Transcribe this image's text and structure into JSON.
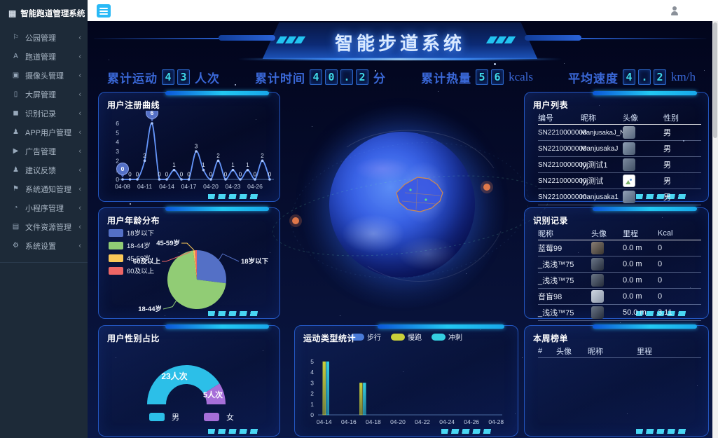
{
  "app": {
    "sidebar_title": "智能跑道管理系统"
  },
  "sidebar": {
    "items": [
      {
        "label": "公园管理",
        "icon": "park-icon",
        "glyph": "⚐",
        "chevron": "‹"
      },
      {
        "label": "跑道管理",
        "icon": "track-icon",
        "glyph": "A",
        "chevron": "‹"
      },
      {
        "label": "摄像头管理",
        "icon": "camera-icon",
        "glyph": "▣",
        "chevron": "‹"
      },
      {
        "label": "大屏管理",
        "icon": "screen-icon",
        "glyph": "▯",
        "chevron": "‹"
      },
      {
        "label": "识别记录",
        "icon": "record-icon",
        "glyph": "◼",
        "chevron": "‹"
      },
      {
        "label": "APP用户管理",
        "icon": "app-user-icon",
        "glyph": "♟",
        "chevron": "‹"
      },
      {
        "label": "广告管理",
        "icon": "ad-icon",
        "glyph": "▶",
        "chevron": "‹"
      },
      {
        "label": "建议反馈",
        "icon": "feedback-icon",
        "glyph": "♟",
        "chevron": "‹"
      },
      {
        "label": "系统通知管理",
        "icon": "notification-icon",
        "glyph": "⚑",
        "chevron": "‹"
      },
      {
        "label": "小程序管理",
        "icon": "miniprogram-icon",
        "glyph": "◔",
        "chevron": "‹"
      },
      {
        "label": "文件资源管理",
        "icon": "file-icon",
        "glyph": "▤",
        "chevron": "‹"
      },
      {
        "label": "系统设置",
        "icon": "settings-icon",
        "glyph": "⚙",
        "chevron": "‹"
      }
    ]
  },
  "banner": {
    "title": "智能步道系统"
  },
  "stats": [
    {
      "label": "累计运动",
      "digits": [
        "4",
        "3"
      ],
      "unit": "人次"
    },
    {
      "label": "累计时间",
      "digits": [
        "4",
        "0",
        ".",
        "2"
      ],
      "unit": "分"
    },
    {
      "label": "累计热量",
      "digits": [
        "5",
        "6"
      ],
      "unit": "kcals"
    },
    {
      "label": "平均速度",
      "digits": [
        "4",
        ".",
        "2"
      ],
      "unit": "km/h"
    }
  ],
  "panels": {
    "register": {
      "title": "用户注册曲线"
    },
    "age": {
      "title": "用户年龄分布"
    },
    "gender": {
      "title": "用户性别占比"
    },
    "users": {
      "title": "用户列表",
      "columns": [
        "编号",
        "昵称",
        "头像",
        "性别"
      ],
      "rows": [
        {
          "id": "SN2210000000",
          "nick": "ManjusakaJ_New",
          "gender": "男"
        },
        {
          "id": "SN2210000000",
          "nick": "ManjusakaJ",
          "gender": "男"
        },
        {
          "id": "SN2210000000",
          "nick": "lyj测试1",
          "gender": "男"
        },
        {
          "id": "SN2210000000",
          "nick": "lyj测试",
          "gender": "男"
        },
        {
          "id": "SN2210000000",
          "nick": "manjusaka1",
          "gender": "男"
        }
      ]
    },
    "records": {
      "title": "识别记录",
      "columns": [
        "昵称",
        "头像",
        "里程",
        "Kcal"
      ],
      "rows": [
        {
          "nick": "蓝莓99",
          "distance": "0.0 m",
          "kcal": "0"
        },
        {
          "nick": "_浅浅™75",
          "distance": "0.0 m",
          "kcal": "0"
        },
        {
          "nick": "_浅浅™75",
          "distance": "0.0 m",
          "kcal": "0"
        },
        {
          "nick": "音盲98",
          "distance": "0.0 m",
          "kcal": "0"
        },
        {
          "nick": "_浅浅™75",
          "distance": "50.0 m",
          "kcal": "3.11"
        }
      ]
    },
    "ranking": {
      "title": "本周榜单",
      "columns": [
        "#",
        "头像",
        "昵称",
        "里程"
      ],
      "rows": []
    },
    "sport": {
      "title": "运动类型统计"
    }
  },
  "chart_data": [
    {
      "id": "register_curve",
      "type": "line",
      "title": "用户注册曲线",
      "x": [
        "04-08",
        "04-09",
        "04-10",
        "04-11",
        "04-12",
        "04-13",
        "04-14",
        "04-15",
        "04-16",
        "04-17",
        "04-18",
        "04-19",
        "04-20",
        "04-21",
        "04-22",
        "04-23",
        "04-24",
        "04-25",
        "04-26",
        "04-27",
        "04-28"
      ],
      "values": [
        0,
        0,
        0,
        2,
        6,
        0,
        0,
        1,
        0,
        0,
        3,
        1,
        0,
        2,
        0,
        1,
        0,
        1,
        0,
        2,
        0
      ],
      "x_ticks": [
        "04-08",
        "04-11",
        "04-14",
        "04-17",
        "04-20",
        "04-23",
        "04-26"
      ],
      "ylim": [
        0,
        6
      ],
      "pin_indices": [
        0,
        4
      ],
      "line_color": "#6495fa",
      "grid": false
    },
    {
      "id": "age_pie",
      "type": "pie",
      "title": "用户年龄分布",
      "labels": [
        "18岁以下",
        "18-44岁",
        "45-59岁",
        "60及以上"
      ],
      "values": [
        27,
        71,
        1,
        1
      ],
      "colors": [
        "#5470c6",
        "#91cc75",
        "#fac858",
        "#ee6666"
      ],
      "legend_position": "left"
    },
    {
      "id": "gender_donut",
      "type": "pie",
      "title": "用户性别占比",
      "shape": "half-donut",
      "labels": [
        "男",
        "女"
      ],
      "values": [
        23,
        5
      ],
      "value_labels": [
        "23人次",
        "5人次"
      ],
      "colors": [
        "#2cbfe8",
        "#a66fd8"
      ],
      "legend_position": "bottom"
    },
    {
      "id": "sport_bar",
      "type": "bar",
      "title": "运动类型统计",
      "categories": [
        "04-14",
        "04-15",
        "04-16",
        "04-17",
        "04-18",
        "04-19",
        "04-20",
        "04-21",
        "04-22",
        "04-23",
        "04-24",
        "04-25",
        "04-26",
        "04-27",
        "04-28"
      ],
      "x_ticks": [
        "04-14",
        "04-16",
        "04-18",
        "04-20",
        "04-22",
        "04-24",
        "04-26",
        "04-28"
      ],
      "series": [
        {
          "name": "步行",
          "color": "#4a7bd8",
          "values": [
            0,
            0,
            0,
            0,
            0,
            0,
            0,
            0,
            0,
            0,
            0,
            0,
            0,
            0,
            0
          ]
        },
        {
          "name": "慢跑",
          "color": "#c9cf3a",
          "values": [
            5,
            0,
            0,
            3,
            0,
            0,
            0,
            0,
            0,
            0,
            0,
            0,
            0,
            0,
            0
          ]
        },
        {
          "name": "冲刺",
          "color": "#35cfe0",
          "values": [
            5,
            0,
            0,
            3,
            0,
            0,
            0,
            0,
            0,
            0,
            0,
            0,
            0,
            0,
            0
          ]
        }
      ],
      "ylim": [
        0,
        5
      ],
      "legend_position": "top"
    }
  ],
  "colors": {
    "accent_cyan": "#35d2f0",
    "accent_blue": "#2a63d8",
    "digit_color": "#3fd9e8",
    "panel_border": "#2356c0",
    "sidebar_bg": "#1d2a38",
    "hamburger": "#29b9f6"
  }
}
